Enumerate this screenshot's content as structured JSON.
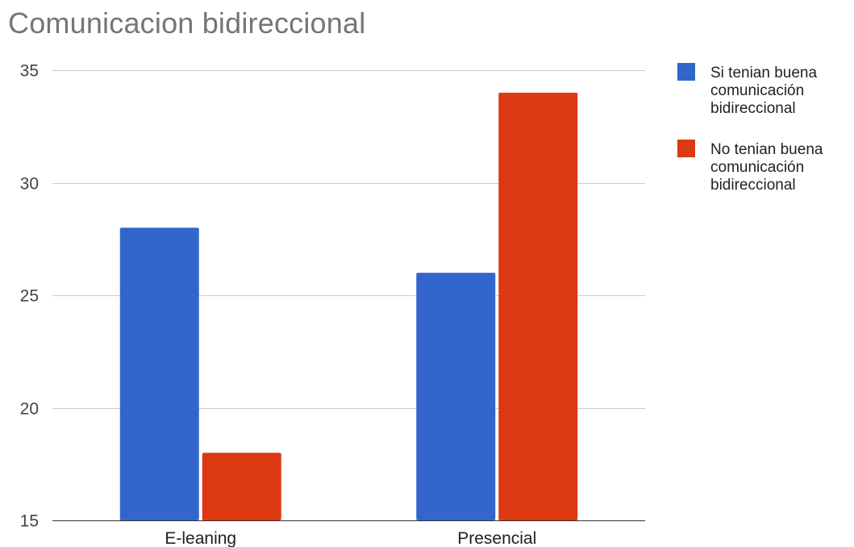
{
  "chart_data": {
    "type": "bar",
    "title": "Comunicacion bidireccional",
    "categories": [
      "E-leaning",
      "Presencial"
    ],
    "series": [
      {
        "name": "Si tenian buena comunicación bidireccional",
        "name_lines": [
          "Si tenian buena",
          "comunicación",
          "bidireccional"
        ],
        "color": "#3366cc",
        "values": [
          28,
          26
        ]
      },
      {
        "name": "No tenian buena comunicación bidireccional",
        "name_lines": [
          "No tenian buena",
          "comunicación",
          "bidireccional"
        ],
        "color": "#dc3912",
        "values": [
          18,
          34
        ]
      }
    ],
    "ylim": [
      15,
      35
    ],
    "yticks": [
      15,
      20,
      25,
      30,
      35
    ],
    "xlabel": "",
    "ylabel": "",
    "grid": true,
    "legend_position": "right"
  }
}
